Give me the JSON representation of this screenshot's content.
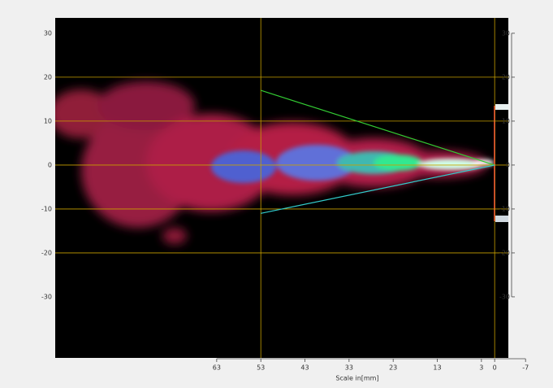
{
  "chart_data": {
    "type": "image",
    "xlabel": "Scale in[mm]",
    "xlim": [
      99.6,
      -3.1
    ],
    "xticks": [
      63,
      53,
      43,
      33,
      23,
      13,
      3,
      0,
      -7
    ],
    "ylim": [
      -43.9,
      33.5
    ],
    "yticks": [
      30,
      20,
      10,
      0,
      -10,
      -20,
      -30
    ],
    "grid_x": [
      53,
      0
    ],
    "grid_y": [
      20,
      10,
      0,
      -10,
      -20
    ],
    "grid_color": "#c8a000",
    "lines": [
      {
        "color": "#33cc33",
        "x": [
          53,
          0
        ],
        "y": [
          17,
          0
        ]
      },
      {
        "color": "#33cccc",
        "x": [
          53,
          0
        ],
        "y": [
          -11,
          0
        ]
      }
    ]
  }
}
